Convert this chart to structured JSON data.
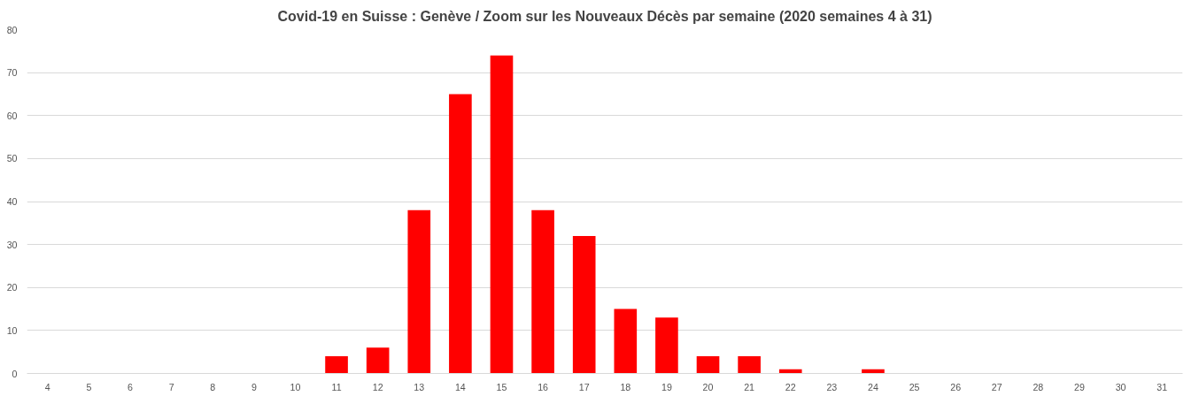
{
  "chart_data": {
    "type": "bar",
    "title": "Covid-19 en Suisse : Genève / Zoom sur les Nouveaux Décès par semaine (2020 semaines 4 à 31)",
    "categories": [
      "4",
      "5",
      "6",
      "7",
      "8",
      "9",
      "10",
      "11",
      "12",
      "13",
      "14",
      "15",
      "16",
      "17",
      "18",
      "19",
      "20",
      "21",
      "22",
      "23",
      "24",
      "25",
      "26",
      "27",
      "28",
      "29",
      "30",
      "31"
    ],
    "values": [
      0,
      0,
      0,
      0,
      0,
      0,
      0,
      4,
      6,
      38,
      65,
      74,
      38,
      32,
      15,
      13,
      4,
      4,
      1,
      0,
      1,
      0,
      0,
      0,
      0,
      0,
      0,
      0
    ],
    "color": "#ff0000",
    "ylim": [
      0,
      80
    ],
    "yticks": [
      0,
      10,
      20,
      30,
      40,
      50,
      60,
      70,
      80
    ],
    "grid": "y"
  }
}
